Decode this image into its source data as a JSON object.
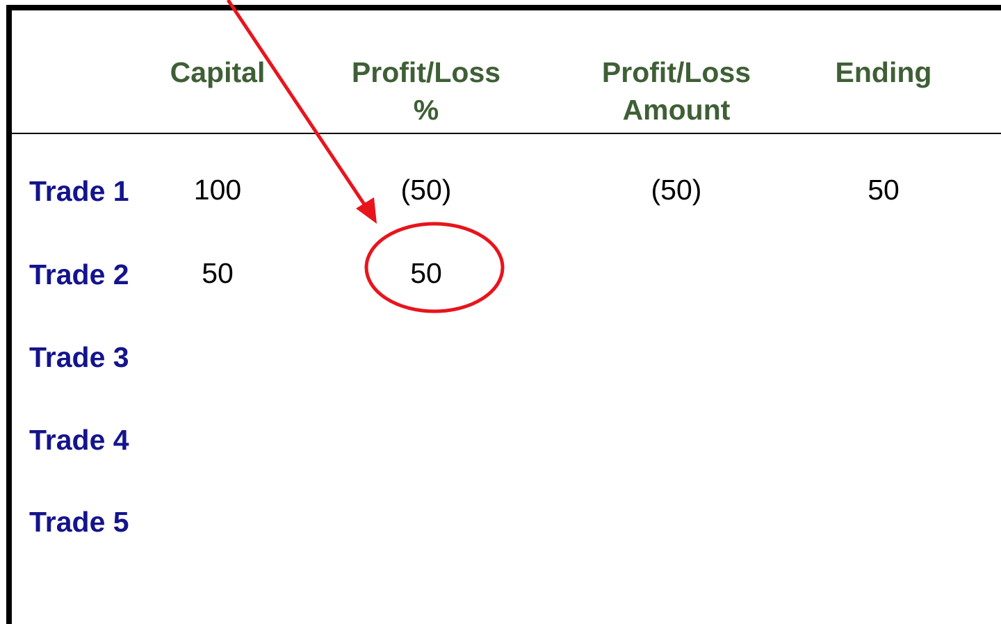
{
  "table": {
    "header": [
      [
        "Capital"
      ],
      [
        "Profit/Loss",
        "%"
      ],
      [
        "Profit/Loss",
        "Amount"
      ],
      [
        "Ending"
      ]
    ],
    "rows": [
      {
        "label": "Trade 1",
        "cells": [
          100,
          "(50)",
          "(50)",
          50
        ]
      },
      {
        "label": "Trade 2",
        "cells": [
          50,
          50
        ]
      },
      {
        "label": "Trade 3",
        "cells": []
      },
      {
        "label": "Trade 4",
        "cells": []
      },
      {
        "label": "Trade 5",
        "cells": []
      }
    ]
  }
}
